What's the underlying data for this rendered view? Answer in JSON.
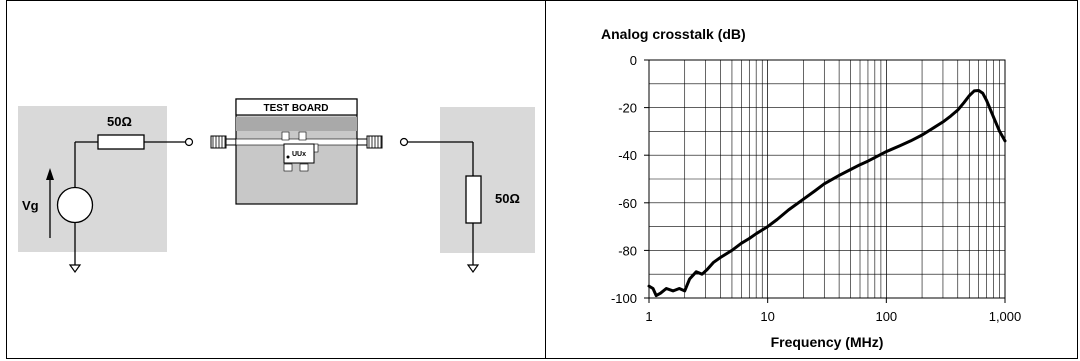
{
  "circuit": {
    "source_label": "Vg",
    "series_resistor_label": "50Ω",
    "load_resistor_label": "50Ω",
    "board_title": "TEST BOARD",
    "chip_label": "UUx"
  },
  "chart_data": {
    "type": "line",
    "title": "Analog crosstalk (dB)",
    "xlabel": "Frequency (MHz)",
    "ylabel": "",
    "xscale": "log",
    "xlim": [
      1,
      1000
    ],
    "ylim": [
      -100,
      0
    ],
    "x_tick_labels": [
      "1",
      "10",
      "100",
      "1,000"
    ],
    "y_tick_labels": [
      "0",
      "-20",
      "-40",
      "-60",
      "-80",
      "-100"
    ],
    "grid": true,
    "series": [
      {
        "color": "#000000",
        "x": [
          1,
          1.08,
          1.15,
          1.25,
          1.4,
          1.6,
          1.8,
          2.0,
          2.2,
          2.5,
          2.8,
          3.1,
          3.5,
          4,
          5,
          6,
          7,
          8,
          10,
          12,
          15,
          20,
          25,
          30,
          40,
          50,
          60,
          70,
          80,
          100,
          130,
          160,
          200,
          250,
          300,
          350,
          400,
          450,
          500,
          550,
          600,
          650,
          700,
          800,
          900,
          1000
        ],
        "y": [
          -95,
          -96,
          -99,
          -98,
          -96,
          -97,
          -96,
          -97,
          -92,
          -89,
          -90,
          -88,
          -85,
          -83,
          -80,
          -77,
          -75,
          -73,
          -70,
          -67,
          -63,
          -58.5,
          -55,
          -52,
          -48.5,
          -46,
          -44,
          -42.5,
          -41,
          -38.5,
          -36,
          -34,
          -31.5,
          -28.5,
          -26,
          -23.5,
          -21,
          -18,
          -15,
          -13,
          -12.8,
          -14,
          -17,
          -24,
          -30,
          -34
        ]
      }
    ]
  }
}
